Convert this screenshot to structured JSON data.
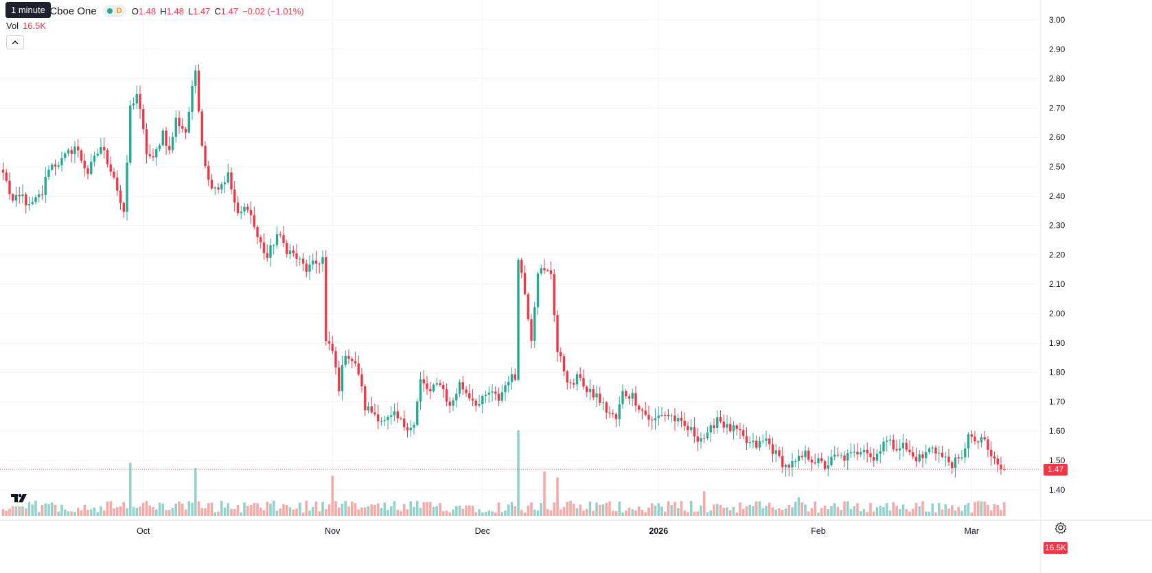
{
  "header": {
    "symbol_title": "nc. · 4h · Cboe One",
    "tooltip": "1 minute",
    "status_badge": "D",
    "ohlc": {
      "o_label": "O",
      "o_value": "1.48",
      "h_label": "H",
      "h_value": "1.48",
      "l_label": "L",
      "l_value": "1.47",
      "c_label": "C",
      "c_value": "1.47",
      "change": "−0.02 (−1.01%)"
    },
    "volume_label": "Vol",
    "volume_value": "16.5K"
  },
  "price_axis_badges": {
    "last_price": "1.47",
    "last_volume": "16.5K"
  },
  "colors": {
    "up": "#22ab94",
    "down": "#f23645",
    "up_volume": "#92d2cc",
    "down_volume": "#f7a9a7",
    "grid": "#f0f3fa"
  },
  "icons": {
    "logo": "tradingview-logo-icon",
    "settings": "settings-icon",
    "collapse": "chevron-up-icon"
  },
  "chart_data": {
    "type": "candlestick",
    "interval": "4h",
    "y_axis": {
      "ticks": [
        "3.00",
        "2.90",
        "2.80",
        "2.70",
        "2.60",
        "2.50",
        "2.40",
        "2.30",
        "2.20",
        "2.10",
        "2.00",
        "1.90",
        "1.80",
        "1.70",
        "1.60",
        "1.50",
        "1.40"
      ],
      "range": [
        1.37,
        3.03
      ]
    },
    "x_axis": {
      "ticks": [
        {
          "label": "Oct",
          "index": 43,
          "bold": false
        },
        {
          "label": "Nov",
          "index": 101,
          "bold": false
        },
        {
          "label": "Dec",
          "index": 147,
          "bold": false
        },
        {
          "label": "2026",
          "index": 201,
          "bold": true
        },
        {
          "label": "Feb",
          "index": 250,
          "bold": false
        },
        {
          "label": "Mar",
          "index": 297,
          "bold": false
        }
      ]
    },
    "anchors": [
      [
        0,
        2.48
      ],
      [
        3,
        2.38
      ],
      [
        6,
        2.4
      ],
      [
        8,
        2.36
      ],
      [
        12,
        2.41
      ],
      [
        14,
        2.5
      ],
      [
        18,
        2.52
      ],
      [
        22,
        2.57
      ],
      [
        26,
        2.48
      ],
      [
        30,
        2.57
      ],
      [
        34,
        2.47
      ],
      [
        37,
        2.33
      ],
      [
        39,
        2.7
      ],
      [
        41,
        2.75
      ],
      [
        44,
        2.55
      ],
      [
        46,
        2.52
      ],
      [
        49,
        2.62
      ],
      [
        51,
        2.55
      ],
      [
        53,
        2.66
      ],
      [
        56,
        2.62
      ],
      [
        59,
        2.83
      ],
      [
        61,
        2.58
      ],
      [
        63,
        2.45
      ],
      [
        66,
        2.43
      ],
      [
        69,
        2.47
      ],
      [
        72,
        2.33
      ],
      [
        75,
        2.37
      ],
      [
        78,
        2.26
      ],
      [
        81,
        2.19
      ],
      [
        84,
        2.27
      ],
      [
        87,
        2.22
      ],
      [
        90,
        2.19
      ],
      [
        93,
        2.15
      ],
      [
        96,
        2.17
      ],
      [
        98,
        2.19
      ],
      [
        99,
        1.9
      ],
      [
        101,
        1.87
      ],
      [
        103,
        1.75
      ],
      [
        105,
        1.87
      ],
      [
        107,
        1.84
      ],
      [
        109,
        1.8
      ],
      [
        111,
        1.68
      ],
      [
        114,
        1.66
      ],
      [
        117,
        1.63
      ],
      [
        120,
        1.65
      ],
      [
        123,
        1.62
      ],
      [
        126,
        1.62
      ],
      [
        128,
        1.77
      ],
      [
        131,
        1.73
      ],
      [
        134,
        1.77
      ],
      [
        137,
        1.68
      ],
      [
        140,
        1.76
      ],
      [
        143,
        1.72
      ],
      [
        146,
        1.69
      ],
      [
        149,
        1.73
      ],
      [
        152,
        1.71
      ],
      [
        155,
        1.78
      ],
      [
        157,
        1.78
      ],
      [
        158,
        2.2
      ],
      [
        160,
        2.07
      ],
      [
        162,
        1.92
      ],
      [
        164,
        2.15
      ],
      [
        166,
        2.14
      ],
      [
        168,
        2.14
      ],
      [
        170,
        1.87
      ],
      [
        172,
        1.81
      ],
      [
        174,
        1.75
      ],
      [
        177,
        1.79
      ],
      [
        179,
        1.73
      ],
      [
        182,
        1.72
      ],
      [
        185,
        1.67
      ],
      [
        188,
        1.64
      ],
      [
        190,
        1.73
      ],
      [
        193,
        1.72
      ],
      [
        196,
        1.67
      ],
      [
        199,
        1.63
      ],
      [
        202,
        1.66
      ],
      [
        205,
        1.65
      ],
      [
        208,
        1.62
      ],
      [
        211,
        1.6
      ],
      [
        213,
        1.58
      ],
      [
        216,
        1.58
      ],
      [
        219,
        1.65
      ],
      [
        222,
        1.61
      ],
      [
        225,
        1.6
      ],
      [
        228,
        1.56
      ],
      [
        231,
        1.55
      ],
      [
        234,
        1.57
      ],
      [
        237,
        1.52
      ],
      [
        240,
        1.48
      ],
      [
        243,
        1.49
      ],
      [
        246,
        1.52
      ],
      [
        249,
        1.5
      ],
      [
        252,
        1.48
      ],
      [
        255,
        1.51
      ],
      [
        258,
        1.51
      ],
      [
        261,
        1.52
      ],
      [
        264,
        1.55
      ],
      [
        267,
        1.5
      ],
      [
        270,
        1.57
      ],
      [
        273,
        1.55
      ],
      [
        276,
        1.55
      ],
      [
        279,
        1.51
      ],
      [
        282,
        1.51
      ],
      [
        285,
        1.55
      ],
      [
        288,
        1.51
      ],
      [
        291,
        1.49
      ],
      [
        294,
        1.5
      ],
      [
        296,
        1.6
      ],
      [
        298,
        1.55
      ],
      [
        300,
        1.58
      ],
      [
        302,
        1.53
      ],
      [
        304,
        1.5
      ],
      [
        306,
        1.47
      ],
      [
        307,
        1.47
      ]
    ],
    "volume_spikes": [
      [
        39,
        0.62
      ],
      [
        59,
        0.56
      ],
      [
        101,
        0.47
      ],
      [
        158,
        1.0
      ],
      [
        166,
        0.52
      ],
      [
        170,
        0.45
      ],
      [
        215,
        0.29
      ],
      [
        244,
        0.22
      ],
      [
        300,
        0.17
      ]
    ],
    "last_price": 1.47,
    "last_volume": "16.5K"
  }
}
